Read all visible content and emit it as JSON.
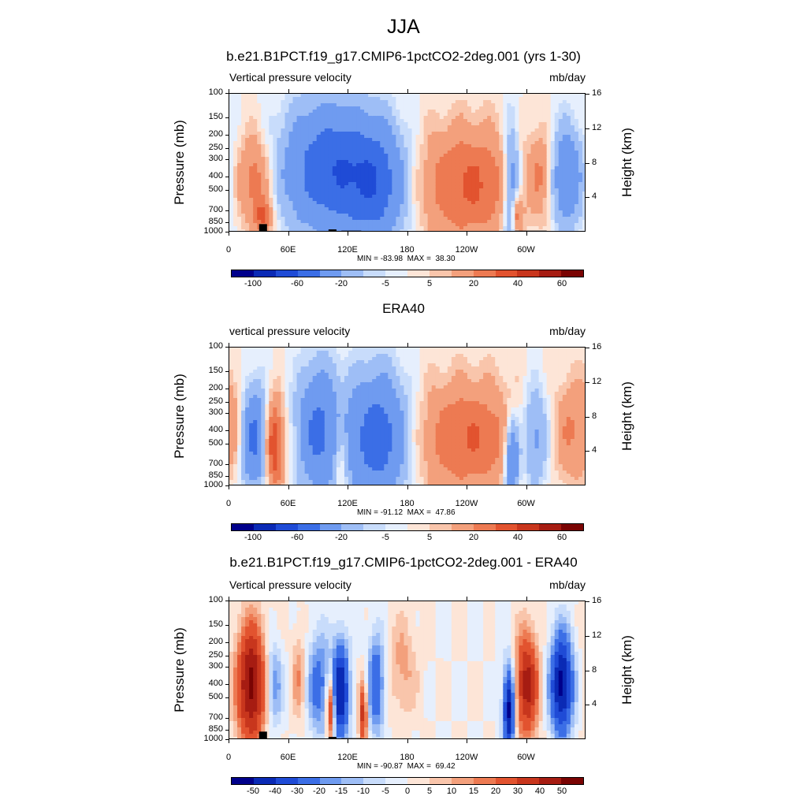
{
  "figure_title": "JJA",
  "chart_data": [
    {
      "type": "heatmap",
      "title": "b.e21.B1PCT.f19_g17.CMIP6-1pctCO2-2deg.001 (yrs 1-30)",
      "left_subtitle": "Vertical pressure velocity",
      "right_subtitle": "mb/day",
      "ylabel": "Pressure (mb)",
      "y2label": "Height (km)",
      "pressure_ticks": [
        "100",
        "150",
        "200",
        "250",
        "300",
        "400",
        "500",
        "700",
        "850",
        "1000"
      ],
      "height_ticks": [
        "16",
        "12",
        "8",
        "4"
      ],
      "x_ticks": [
        "0",
        "60E",
        "120E",
        "180",
        "120W",
        "60W"
      ],
      "stats": "MIN = -83.98  MAX =  38.30",
      "colorbar_labels": [
        "-100",
        "-60",
        "-20",
        "-5",
        "5",
        "20",
        "40",
        "60"
      ],
      "colorbar_levels": [
        -100,
        -80,
        -60,
        -40,
        -20,
        -10,
        -5,
        0,
        5,
        10,
        20,
        30,
        40,
        50,
        60
      ],
      "colorbar_colors": [
        "#00008b",
        "#0a2ab5",
        "#1f4bd6",
        "#3b6ee6",
        "#6f9bf0",
        "#9ebef6",
        "#c8dcfb",
        "#e6effd",
        "#fde5d7",
        "#f9c5ab",
        "#f3a07c",
        "#ed7a52",
        "#e2532f",
        "#c8361d",
        "#a61c12",
        "#7a0403"
      ],
      "features": [
        {
          "lon": 25,
          "p": 420,
          "val": 28,
          "wl": 12,
          "wp": 0.55
        },
        {
          "lon": 35,
          "p": 780,
          "val": 30,
          "wl": 6,
          "wp": 0.2
        },
        {
          "lon": 100,
          "p": 350,
          "val": -55,
          "wl": 32,
          "wp": 0.75
        },
        {
          "lon": 150,
          "p": 450,
          "val": -45,
          "wl": 22,
          "wp": 0.7
        },
        {
          "lon": 240,
          "p": 450,
          "val": 32,
          "wl": 38,
          "wp": 0.7
        },
        {
          "lon": 285,
          "p": 500,
          "val": -40,
          "wl": 6,
          "wp": 0.8
        },
        {
          "lon": 290,
          "p": 750,
          "val": 35,
          "wl": 4,
          "wp": 0.25
        },
        {
          "lon": 315,
          "p": 380,
          "val": 20,
          "wl": 8,
          "wp": 0.5
        },
        {
          "lon": 340,
          "p": 400,
          "val": -38,
          "wl": 12,
          "wp": 0.6
        }
      ],
      "topography": [
        [
          8,
          45,
          980
        ],
        [
          30,
          38,
          870
        ],
        [
          100,
          108,
          950
        ],
        [
          113,
          133,
          970
        ],
        [
          288,
          320,
          970
        ]
      ]
    },
    {
      "type": "heatmap",
      "title": "ERA40",
      "left_subtitle": "vertical pressure velocity",
      "right_subtitle": "mb/day",
      "ylabel": "Pressure (mb)",
      "y2label": "Height (km)",
      "pressure_ticks": [
        "100",
        "150",
        "200",
        "250",
        "300",
        "400",
        "500",
        "700",
        "850",
        "1000"
      ],
      "height_ticks": [
        "16",
        "12",
        "8",
        "4"
      ],
      "x_ticks": [
        "0",
        "60E",
        "120E",
        "180",
        "120W",
        "60W"
      ],
      "stats": "MIN = -91.12  MAX =  47.86",
      "colorbar_labels": [
        "-100",
        "-60",
        "-20",
        "-5",
        "5",
        "20",
        "40",
        "60"
      ],
      "colorbar_levels": [
        -100,
        -80,
        -60,
        -40,
        -20,
        -10,
        -5,
        0,
        5,
        10,
        20,
        30,
        40,
        50,
        60
      ],
      "colorbar_colors": [
        "#00008b",
        "#0a2ab5",
        "#1f4bd6",
        "#3b6ee6",
        "#6f9bf0",
        "#9ebef6",
        "#c8dcfb",
        "#e6effd",
        "#fde5d7",
        "#f9c5ab",
        "#f3a07c",
        "#ed7a52",
        "#e2532f",
        "#c8361d",
        "#a61c12",
        "#7a0403"
      ],
      "features": [
        {
          "lon": 5,
          "p": 350,
          "val": 15,
          "wl": 8,
          "wp": 0.6
        },
        {
          "lon": 25,
          "p": 450,
          "val": -45,
          "wl": 10,
          "wp": 0.6
        },
        {
          "lon": 45,
          "p": 500,
          "val": 45,
          "wl": 7,
          "wp": 0.55
        },
        {
          "lon": 90,
          "p": 400,
          "val": -45,
          "wl": 15,
          "wp": 0.75
        },
        {
          "lon": 112,
          "p": 600,
          "val": 20,
          "wl": 5,
          "wp": 0.5
        },
        {
          "lon": 150,
          "p": 450,
          "val": -55,
          "wl": 22,
          "wp": 0.75
        },
        {
          "lon": 240,
          "p": 450,
          "val": 30,
          "wl": 40,
          "wp": 0.7
        },
        {
          "lon": 285,
          "p": 650,
          "val": -50,
          "wl": 5,
          "wp": 0.5
        },
        {
          "lon": 308,
          "p": 450,
          "val": -30,
          "wl": 10,
          "wp": 0.6
        },
        {
          "lon": 345,
          "p": 400,
          "val": 20,
          "wl": 12,
          "wp": 0.6
        }
      ],
      "topography": []
    },
    {
      "type": "heatmap",
      "title": "b.e21.B1PCT.f19_g17.CMIP6-1pctCO2-2deg.001 - ERA40",
      "left_subtitle": "Vertical pressure velocity",
      "right_subtitle": "mb/day",
      "ylabel": "Pressure (mb)",
      "y2label": "Height (km)",
      "pressure_ticks": [
        "100",
        "150",
        "200",
        "250",
        "300",
        "400",
        "500",
        "700",
        "850",
        "1000"
      ],
      "height_ticks": [
        "16",
        "12",
        "8",
        "4"
      ],
      "x_ticks": [
        "0",
        "60E",
        "120E",
        "180",
        "120W",
        "60W"
      ],
      "stats": "MIN = -90.87  MAX =  69.42",
      "colorbar_labels": [
        "-50",
        "-40",
        "-30",
        "-20",
        "-15",
        "-10",
        "-5",
        "0",
        "5",
        "10",
        "15",
        "20",
        "30",
        "40",
        "50"
      ],
      "colorbar_levels": [
        -50,
        -40,
        -30,
        -20,
        -15,
        -10,
        -5,
        0,
        5,
        10,
        15,
        20,
        30,
        40,
        50
      ],
      "colorbar_colors": [
        "#00008b",
        "#0a2ab5",
        "#1f4bd6",
        "#3b6ee6",
        "#6f9bf0",
        "#9ebef6",
        "#c8dcfb",
        "#e6effd",
        "#fde5d7",
        "#f9c5ab",
        "#f3a07c",
        "#ed7a52",
        "#e2532f",
        "#c8361d",
        "#a61c12",
        "#7a0403"
      ],
      "features": [
        {
          "lon": 22,
          "p": 400,
          "val": 55,
          "wl": 10,
          "wp": 0.7
        },
        {
          "lon": 45,
          "p": 400,
          "val": -20,
          "wl": 6,
          "wp": 0.5
        },
        {
          "lon": 70,
          "p": 350,
          "val": 15,
          "wl": 5,
          "wp": 0.5
        },
        {
          "lon": 90,
          "p": 400,
          "val": -25,
          "wl": 8,
          "wp": 0.6
        },
        {
          "lon": 102,
          "p": 600,
          "val": 40,
          "wl": 3,
          "wp": 0.4
        },
        {
          "lon": 112,
          "p": 450,
          "val": -50,
          "wl": 6,
          "wp": 0.6
        },
        {
          "lon": 135,
          "p": 650,
          "val": 35,
          "wl": 3,
          "wp": 0.4
        },
        {
          "lon": 148,
          "p": 400,
          "val": -30,
          "wl": 6,
          "wp": 0.6
        },
        {
          "lon": 175,
          "p": 300,
          "val": 12,
          "wl": 10,
          "wp": 0.6
        },
        {
          "lon": 282,
          "p": 600,
          "val": -55,
          "wl": 4,
          "wp": 0.5
        },
        {
          "lon": 300,
          "p": 400,
          "val": 45,
          "wl": 8,
          "wp": 0.6
        },
        {
          "lon": 335,
          "p": 400,
          "val": -55,
          "wl": 8,
          "wp": 0.6
        }
      ],
      "topography": [
        [
          8,
          45,
          980
        ],
        [
          30,
          38,
          870
        ],
        [
          100,
          108,
          950
        ],
        [
          113,
          133,
          970
        ],
        [
          288,
          320,
          970
        ]
      ]
    }
  ]
}
